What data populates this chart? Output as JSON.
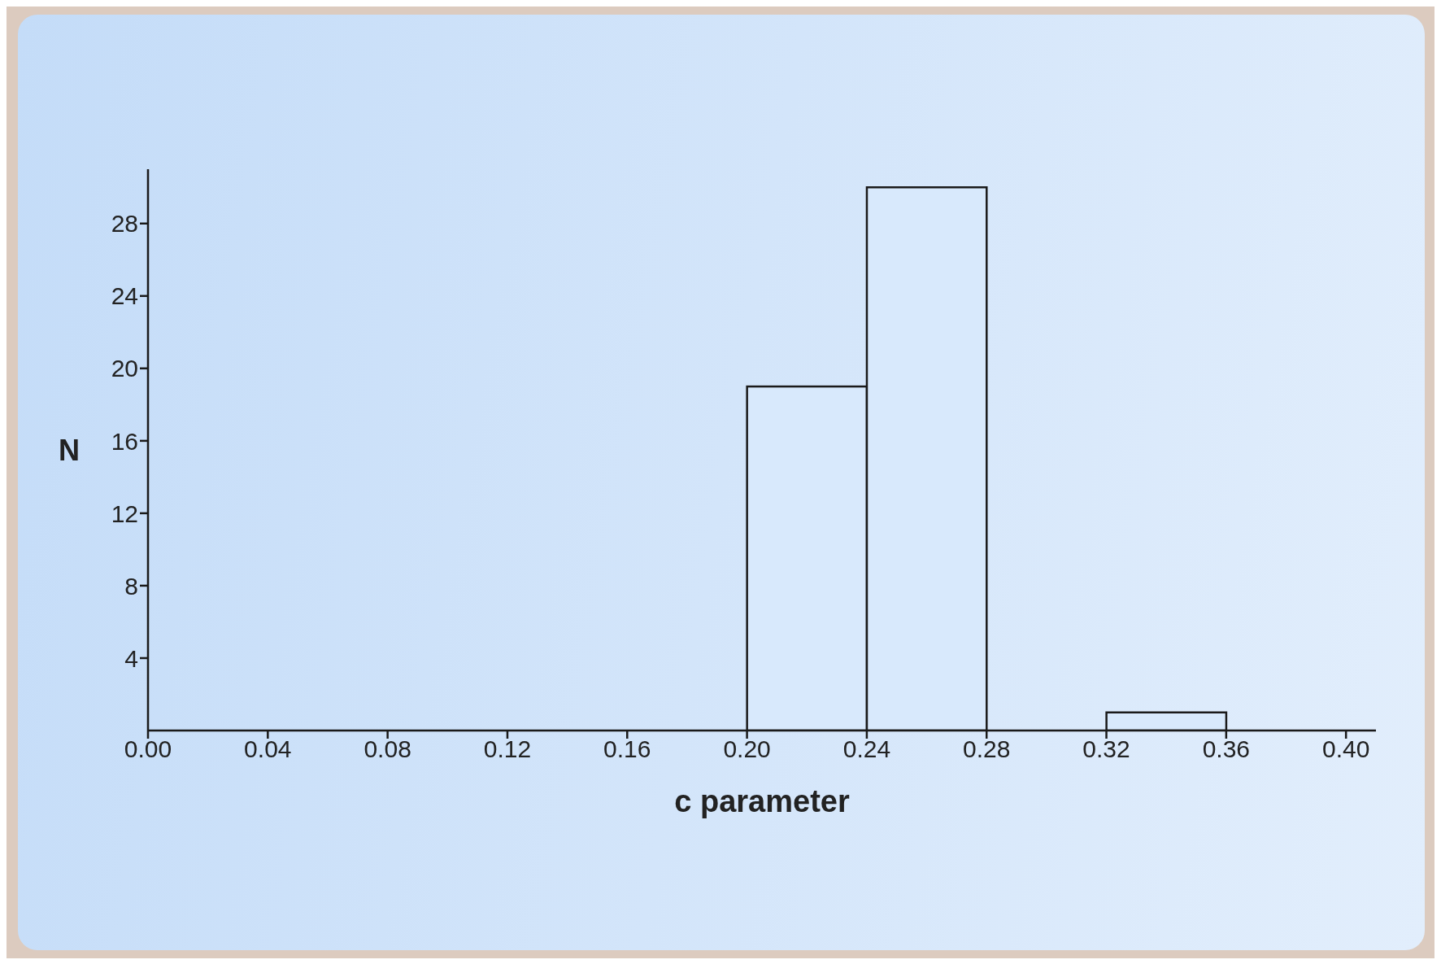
{
  "chart_data": {
    "type": "histogram",
    "xlabel": "c parameter",
    "ylabel": "N",
    "bins": [
      0,
      0.04,
      0.08,
      0.12,
      0.16,
      0.2,
      0.24,
      0.28,
      0.32,
      0.36,
      0.4
    ],
    "values": [
      0,
      0,
      0,
      0,
      0,
      19,
      30,
      0,
      1,
      0
    ],
    "color": "#d8e9fc",
    "xlim": [
      0,
      0.41
    ],
    "xticks": [
      {
        "value": 0,
        "label": "0.00"
      },
      {
        "value": 0.04,
        "label": "0.04"
      },
      {
        "value": 0.08,
        "label": "0.08"
      },
      {
        "value": 0.12,
        "label": "0.12"
      },
      {
        "value": 0.16,
        "label": "0.16"
      },
      {
        "value": 0.2,
        "label": "0.20"
      },
      {
        "value": 0.24,
        "label": "0.24"
      },
      {
        "value": 0.28,
        "label": "0.28"
      },
      {
        "value": 0.32,
        "label": "0.32"
      },
      {
        "value": 0.36,
        "label": "0.36"
      },
      {
        "value": 0.4,
        "label": "0.40"
      }
    ],
    "ylim": [
      0,
      31
    ],
    "yticks": [
      4,
      8,
      12,
      16,
      20,
      24,
      28
    ],
    "grid": false,
    "legend": false
  }
}
